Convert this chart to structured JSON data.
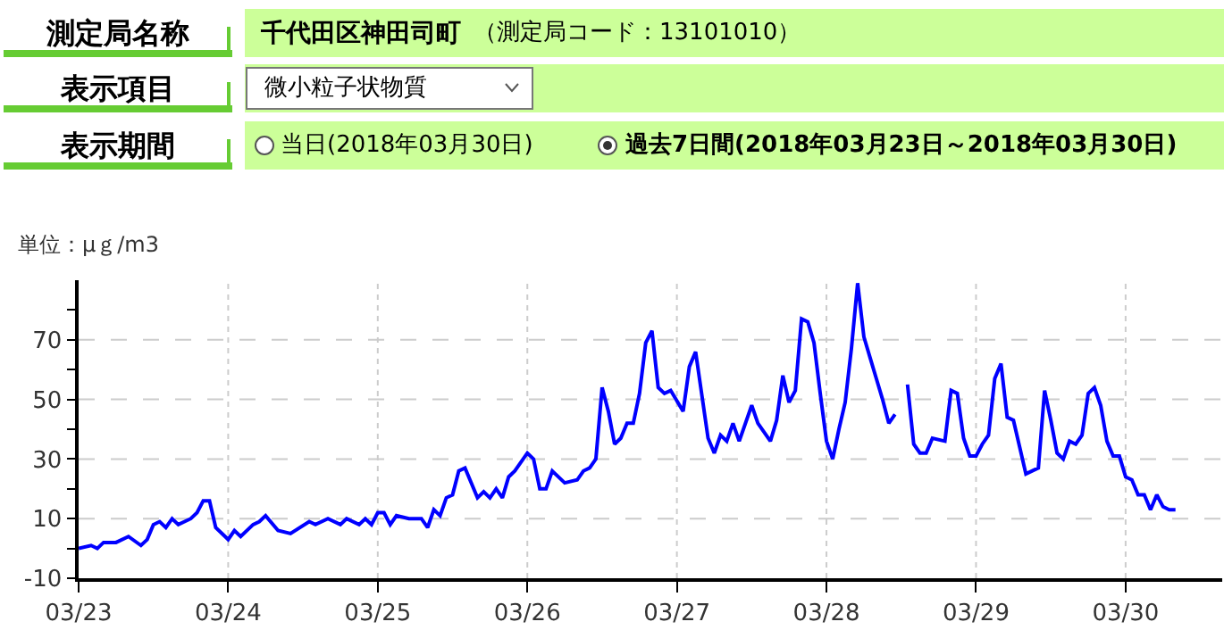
{
  "chart_data": {
    "type": "line",
    "annotations": [
      "測定局名称",
      "千代田区神田司町",
      "（測定局コード：13101010）",
      "表示項目",
      "微小粒子状物質",
      "表示期間",
      "当日(2018年03月30日)",
      "過去7日間(2018年03月23日～2018年03月30日)"
    ],
    "ylabel": "単位：μｇ/m3",
    "x": [
      "2018-03-23T00:00",
      "2018-03-23T02:00",
      "2018-03-23T03:00",
      "2018-03-23T04:00",
      "2018-03-23T06:00",
      "2018-03-23T08:00",
      "2018-03-23T10:00",
      "2018-03-23T11:00",
      "2018-03-23T12:00",
      "2018-03-23T13:00",
      "2018-03-23T14:00",
      "2018-03-23T15:00",
      "2018-03-23T16:00",
      "2018-03-23T18:00",
      "2018-03-23T19:00",
      "2018-03-23T20:00",
      "2018-03-23T21:00",
      "2018-03-23T22:00",
      "2018-03-24T00:00",
      "2018-03-24T01:00",
      "2018-03-24T02:00",
      "2018-03-24T04:00",
      "2018-03-24T05:00",
      "2018-03-24T06:00",
      "2018-03-24T08:00",
      "2018-03-24T10:00",
      "2018-03-24T13:00",
      "2018-03-24T14:00",
      "2018-03-24T16:00",
      "2018-03-24T18:00",
      "2018-03-24T19:00",
      "2018-03-24T21:00",
      "2018-03-24T22:00",
      "2018-03-24T23:00",
      "2018-03-25T00:00",
      "2018-03-25T01:00",
      "2018-03-25T02:00",
      "2018-03-25T03:00",
      "2018-03-25T05:00",
      "2018-03-25T07:00",
      "2018-03-25T08:00",
      "2018-03-25T09:00",
      "2018-03-25T10:00",
      "2018-03-25T11:00",
      "2018-03-25T12:00",
      "2018-03-25T13:00",
      "2018-03-25T14:00",
      "2018-03-25T16:00",
      "2018-03-25T17:00",
      "2018-03-25T18:00",
      "2018-03-25T19:00",
      "2018-03-25T20:00",
      "2018-03-25T21:00",
      "2018-03-25T22:00",
      "2018-03-26T00:00",
      "2018-03-26T01:00",
      "2018-03-26T02:00",
      "2018-03-26T03:00",
      "2018-03-26T04:00",
      "2018-03-26T06:00",
      "2018-03-26T08:00",
      "2018-03-26T09:00",
      "2018-03-26T10:00",
      "2018-03-26T11:00",
      "2018-03-26T12:00",
      "2018-03-26T13:00",
      "2018-03-26T14:00",
      "2018-03-26T15:00",
      "2018-03-26T16:00",
      "2018-03-26T17:00",
      "2018-03-26T18:00",
      "2018-03-26T19:00",
      "2018-03-26T20:00",
      "2018-03-26T21:00",
      "2018-03-26T22:00",
      "2018-03-26T23:00",
      "2018-03-27T01:00",
      "2018-03-27T02:00",
      "2018-03-27T03:00",
      "2018-03-27T05:00",
      "2018-03-27T06:00",
      "2018-03-27T07:00",
      "2018-03-27T08:00",
      "2018-03-27T09:00",
      "2018-03-27T10:00",
      "2018-03-27T12:00",
      "2018-03-27T13:00",
      "2018-03-27T15:00",
      "2018-03-27T16:00",
      "2018-03-27T17:00",
      "2018-03-27T18:00",
      "2018-03-27T19:00",
      "2018-03-27T20:00",
      "2018-03-27T21:00",
      "2018-03-27T22:00",
      "2018-03-27T23:00",
      "2018-03-28T00:00",
      "2018-03-28T01:00",
      "2018-03-28T02:00",
      "2018-03-28T03:00",
      "2018-03-28T04:00",
      "2018-03-28T05:00",
      "2018-03-28T06:00",
      "2018-03-28T07:00",
      "2018-03-28T08:00",
      "2018-03-28T09:00",
      "2018-03-28T10:00",
      "2018-03-28T11:00",
      "2018-03-28T12:00",
      "2018-03-28T13:00",
      "2018-03-28T14:00",
      "2018-03-28T15:00",
      "2018-03-28T16:00",
      "2018-03-28T17:00",
      "2018-03-28T19:00",
      "2018-03-28T20:00",
      "2018-03-28T21:00",
      "2018-03-28T22:00",
      "2018-03-28T23:00",
      "2018-03-29T00:00",
      "2018-03-29T01:00",
      "2018-03-29T02:00",
      "2018-03-29T03:00",
      "2018-03-29T04:00",
      "2018-03-29T05:00",
      "2018-03-29T06:00",
      "2018-03-29T07:00",
      "2018-03-29T08:00",
      "2018-03-29T10:00",
      "2018-03-29T11:00",
      "2018-03-29T12:00",
      "2018-03-29T13:00",
      "2018-03-29T14:00",
      "2018-03-29T15:00",
      "2018-03-29T16:00",
      "2018-03-29T17:00",
      "2018-03-29T18:00",
      "2018-03-29T19:00",
      "2018-03-29T20:00",
      "2018-03-29T21:00",
      "2018-03-29T22:00",
      "2018-03-29T23:00",
      "2018-03-30T00:00",
      "2018-03-30T01:00",
      "2018-03-30T02:00",
      "2018-03-30T03:00",
      "2018-03-30T04:00",
      "2018-03-30T05:00",
      "2018-03-30T06:00",
      "2018-03-30T07:00",
      "2018-03-30T08:00"
    ],
    "series": [
      {
        "color": "#0000ff",
        "values": [
          0,
          1,
          0,
          2,
          2,
          4,
          1,
          3,
          8,
          9,
          7,
          10,
          8,
          10,
          12,
          16,
          16,
          7,
          3,
          6,
          4,
          8,
          9,
          11,
          6,
          5,
          9,
          8,
          10,
          8,
          10,
          8,
          10,
          8,
          12,
          12,
          8,
          11,
          10,
          10,
          7,
          13,
          11,
          17,
          18,
          26,
          27,
          17,
          19,
          17,
          20,
          17,
          24,
          26,
          32,
          30,
          20,
          20,
          26,
          22,
          23,
          26,
          27,
          30,
          54,
          46,
          35,
          37,
          42,
          42,
          52,
          69,
          73,
          54,
          52,
          53,
          46,
          61,
          66,
          37,
          32,
          38,
          36,
          42,
          36,
          48,
          42,
          36,
          43,
          58,
          49,
          53,
          77,
          76,
          69,
          52,
          36,
          30,
          40,
          49,
          67,
          89,
          71,
          64,
          57,
          50,
          42,
          45,
          null,
          55,
          35,
          32,
          32,
          37,
          36,
          53,
          52,
          37,
          31,
          31,
          35,
          38,
          57,
          62,
          44,
          43,
          34,
          25,
          27,
          53,
          43,
          32,
          30,
          36,
          35,
          38,
          52,
          54,
          48,
          36,
          31,
          31,
          24,
          23,
          18,
          18,
          13,
          18,
          14,
          13,
          13
        ]
      }
    ],
    "xlim": [
      "2018-03-23T00:00",
      "2018-03-30T15:30"
    ],
    "xticks": [
      {
        "value": "2018-03-23",
        "label": "03/23"
      },
      {
        "value": "2018-03-24",
        "label": "03/24"
      },
      {
        "value": "2018-03-25",
        "label": "03/25"
      },
      {
        "value": "2018-03-26",
        "label": "03/26"
      },
      {
        "value": "2018-03-27",
        "label": "03/27"
      },
      {
        "value": "2018-03-28",
        "label": "03/28"
      },
      {
        "value": "2018-03-29",
        "label": "03/29"
      },
      {
        "value": "2018-03-30",
        "label": "03/30"
      }
    ],
    "ylim": [
      -10,
      90
    ],
    "yticks": [
      -10,
      {
        "value": 0,
        "label": null
      },
      10,
      {
        "value": 20,
        "label": null
      },
      30,
      {
        "value": 40,
        "label": null
      },
      50,
      {
        "value": 60,
        "label": null
      },
      70,
      {
        "value": 80,
        "label": null
      }
    ],
    "grid": true,
    "marker": "none",
    "line_style": "solid"
  }
}
